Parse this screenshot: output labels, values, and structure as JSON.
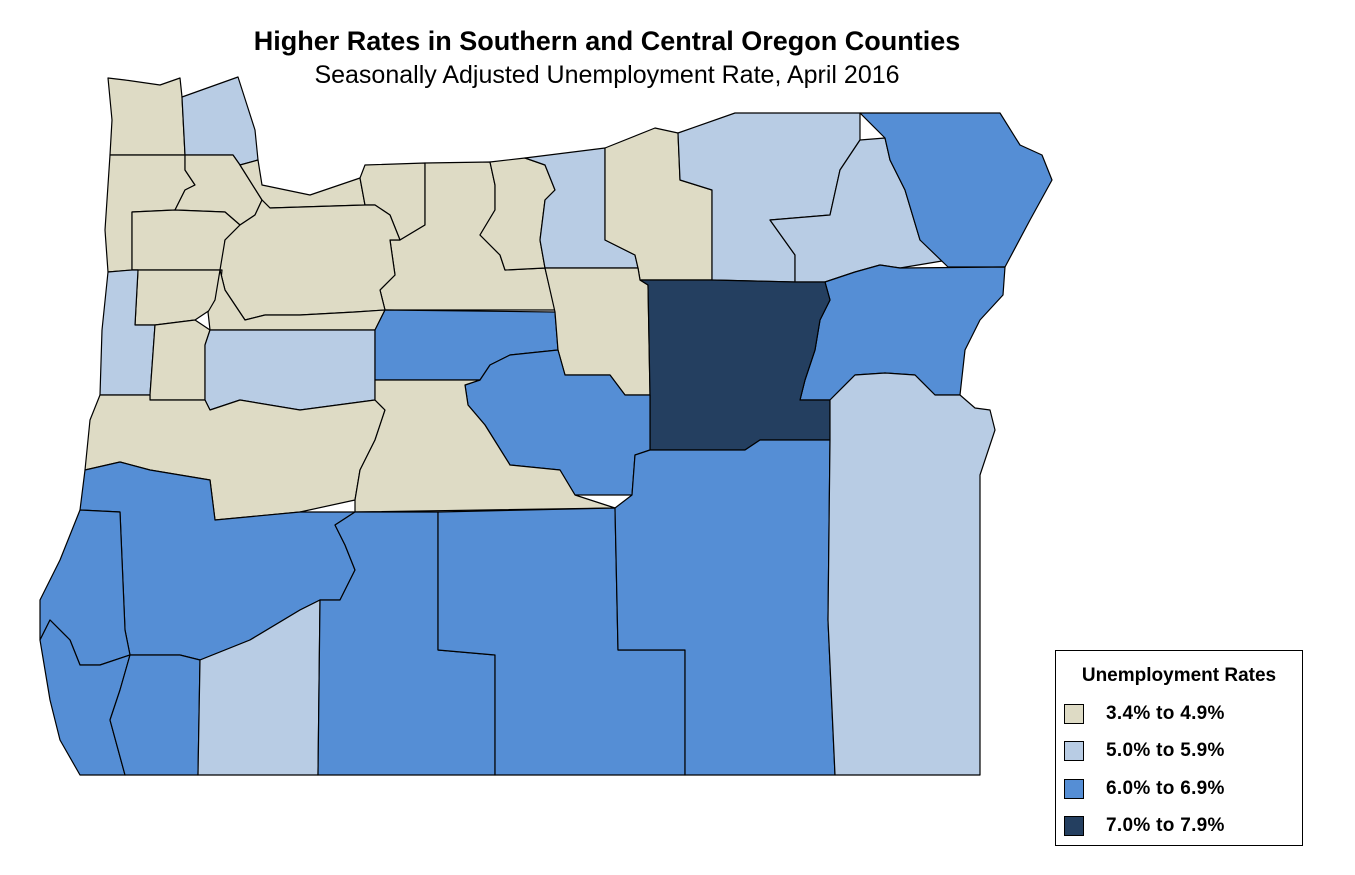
{
  "title": "Higher Rates in Southern and Central Oregon Counties",
  "subtitle": "Seasonally Adjusted Unemployment Rate, April 2016",
  "legend": {
    "title": "Unemployment Rates",
    "items": [
      {
        "label": "3.4% to 4.9%",
        "color": "#dedbc5"
      },
      {
        "label": "5.0% to 5.9%",
        "color": "#b8cce4"
      },
      {
        "label": "6.0% to 6.9%",
        "color": "#558ed5"
      },
      {
        "label": "7.0% to 7.9%",
        "color": "#243f60"
      }
    ]
  },
  "colors": {
    "border": "#000000",
    "background": "#ffffff"
  }
}
